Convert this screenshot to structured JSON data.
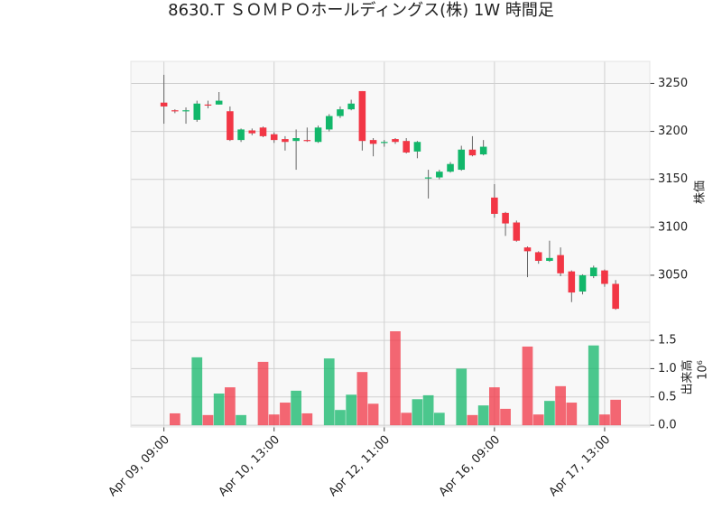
{
  "chart_data": {
    "type": "candlestick",
    "title": "8630.T ＳＯＭＰＯホールディングス(株) 1W 時間足",
    "categories": [
      "Apr 09, 09:00",
      null,
      null,
      null,
      null,
      null,
      null,
      null,
      null,
      null,
      "Apr 10, 13:00",
      null,
      null,
      null,
      null,
      null,
      null,
      null,
      null,
      null,
      "Apr 12, 11:00",
      null,
      null,
      null,
      null,
      null,
      null,
      null,
      null,
      null,
      "Apr 16, 09:00",
      null,
      null,
      null,
      null,
      null,
      null,
      null,
      null,
      null,
      "Apr 17, 13:00",
      null
    ],
    "xlim": [
      -3,
      44.1
    ],
    "open": [
      3230,
      3222,
      3221,
      3212,
      3228,
      3228,
      3221,
      3191,
      3201,
      3204,
      3197,
      3192,
      3190,
      3191,
      3189,
      3202,
      3216,
      3223,
      3242,
      3191,
      3188,
      3192,
      3190,
      3179,
      3151,
      3152,
      3158,
      3160,
      3181,
      3176,
      3131,
      3115,
      3105,
      3079,
      3074,
      3065,
      3071,
      3054,
      3033,
      3049,
      3055,
      3041
    ],
    "high": [
      3259,
      3223,
      3225,
      3232,
      3232,
      3241,
      3226,
      3203,
      3203,
      3205,
      3199,
      3195,
      3202,
      3204,
      3206,
      3218,
      3226,
      3233,
      3242,
      3193,
      3191,
      3193,
      3193,
      3190,
      3160,
      3160,
      3168,
      3185,
      3195,
      3191,
      3145,
      3116,
      3107,
      3080,
      3075,
      3086,
      3079,
      3055,
      3051,
      3060,
      3056,
      3045
    ],
    "low": [
      3208,
      3219,
      3208,
      3210,
      3224,
      3228,
      3190,
      3189,
      3196,
      3194,
      3188,
      3180,
      3160,
      3189,
      3188,
      3200,
      3214,
      3222,
      3180,
      3174,
      3184,
      3187,
      3177,
      3172,
      3130,
      3150,
      3157,
      3159,
      3174,
      3175,
      3110,
      3091,
      3085,
      3048,
      3062,
      3064,
      3049,
      3022,
      3030,
      3047,
      3038,
      3014
    ],
    "close": [
      3226,
      3221,
      3222,
      3229,
      3227,
      3232,
      3191,
      3202,
      3198,
      3195,
      3191,
      3189,
      3193,
      3190,
      3204,
      3216,
      3223,
      3229,
      3190,
      3187,
      3189,
      3189,
      3178,
      3189,
      3152,
      3158,
      3166,
      3181,
      3175,
      3184,
      3114,
      3104,
      3086,
      3075,
      3065,
      3068,
      3052,
      3032,
      3050,
      3058,
      3041,
      3015
    ],
    "volume": [
      0,
      0.21,
      0,
      1.2,
      0.18,
      0.56,
      0.67,
      0.18,
      0,
      1.12,
      0.19,
      0.4,
      0.61,
      0.21,
      0,
      1.18,
      0.27,
      0.54,
      0.94,
      0.38,
      0,
      1.66,
      0.22,
      0.46,
      0.53,
      0.22,
      0,
      1.0,
      0.18,
      0.35,
      0.67,
      0.29,
      0,
      1.39,
      0.19,
      0.43,
      0.69,
      0.4,
      0,
      1.41,
      0.19,
      0.45
    ],
    "up_color": "#12b76a",
    "down_color": "#f23645",
    "ylim": [
      3001,
      3273
    ],
    "yticks": [
      3050,
      3100,
      3150,
      3200,
      3250
    ],
    "ylabel": "株価",
    "volume_ylim": [
      -0.03,
      1.82
    ],
    "volume_yticks": [
      {
        "value": 0,
        "label": "0.0"
      },
      0.5,
      {
        "value": 1,
        "label": "1.0"
      },
      1.5
    ],
    "volume_label": "出来高",
    "volume_scale_label": "10⁶",
    "grid": true
  }
}
